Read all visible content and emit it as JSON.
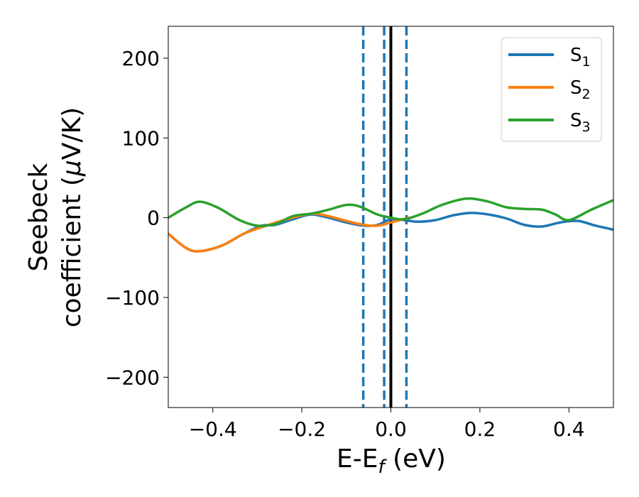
{
  "chart_data": {
    "type": "line",
    "xlabel": {
      "main": "E-E",
      "sub": "f",
      "tail": " (eV)"
    },
    "ylabel": {
      "line1": "Seebeck",
      "line2": "coefficient  (",
      "mu": "μ",
      "line2_tail": "V/K)"
    },
    "xlim": [
      -0.5,
      0.5
    ],
    "ylim": [
      -238,
      240
    ],
    "xticks": [
      -0.4,
      -0.2,
      0.0,
      0.2,
      0.4
    ],
    "xtick_labels": [
      "−0.4",
      "−0.2",
      "0.0",
      "0.2",
      "0.4"
    ],
    "yticks": [
      -200,
      -100,
      0,
      100,
      200
    ],
    "ytick_labels": [
      "−200",
      "−100",
      "0",
      "100",
      "200"
    ],
    "grid": false,
    "legend_position": "top-right",
    "series": [
      {
        "name": "S",
        "sub": "1",
        "color": "#1f77b4",
        "x": [
          -0.5,
          -0.46,
          -0.43,
          -0.38,
          -0.33,
          -0.29,
          -0.26,
          -0.22,
          -0.18,
          -0.14,
          -0.1,
          -0.06,
          -0.03,
          0.0,
          0.03,
          0.06,
          0.1,
          0.14,
          0.18,
          0.22,
          0.26,
          0.3,
          0.34,
          0.38,
          0.42,
          0.46,
          0.5
        ],
        "y": [
          -20,
          -38,
          -42,
          -35,
          -20,
          -10,
          -9,
          -2,
          4,
          0,
          -6,
          -10,
          -9,
          -2,
          -3,
          -5,
          -3,
          3,
          6,
          4,
          -1,
          -9,
          -11,
          -6,
          -4,
          -10,
          -15
        ]
      },
      {
        "name": "S",
        "sub": "2",
        "color": "#ff7f0e",
        "x": [
          -0.5,
          -0.46,
          -0.43,
          -0.38,
          -0.33,
          -0.28,
          -0.24,
          -0.2,
          -0.17,
          -0.14,
          -0.1,
          -0.06,
          -0.03,
          0.0,
          0.04
        ],
        "y": [
          -20,
          -38,
          -42,
          -35,
          -20,
          -10,
          -3,
          3,
          5,
          2,
          -4,
          -9,
          -10,
          -6,
          0
        ]
      },
      {
        "name": "S",
        "sub": "3",
        "color": "#2ca02c",
        "x": [
          -0.5,
          -0.46,
          -0.43,
          -0.39,
          -0.34,
          -0.3,
          -0.26,
          -0.22,
          -0.18,
          -0.14,
          -0.1,
          -0.07,
          -0.03,
          0.0,
          0.03,
          0.07,
          0.11,
          0.15,
          0.18,
          0.22,
          0.26,
          0.3,
          0.34,
          0.37,
          0.4,
          0.45,
          0.5
        ],
        "y": [
          0,
          13,
          20,
          13,
          -3,
          -10,
          -8,
          2,
          5,
          10,
          16,
          14,
          4,
          0,
          -2,
          5,
          15,
          22,
          24,
          20,
          13,
          11,
          10,
          4,
          -3,
          10,
          22
        ]
      }
    ],
    "vlines": [
      {
        "x": -0.062,
        "style": "dashed",
        "color": "#1f77b4"
      },
      {
        "x": -0.015,
        "style": "dashed",
        "color": "#1f77b4"
      },
      {
        "x": 0.0,
        "style": "solid",
        "color": "#000000"
      },
      {
        "x": 0.035,
        "style": "dashed",
        "color": "#1f77b4"
      }
    ]
  }
}
